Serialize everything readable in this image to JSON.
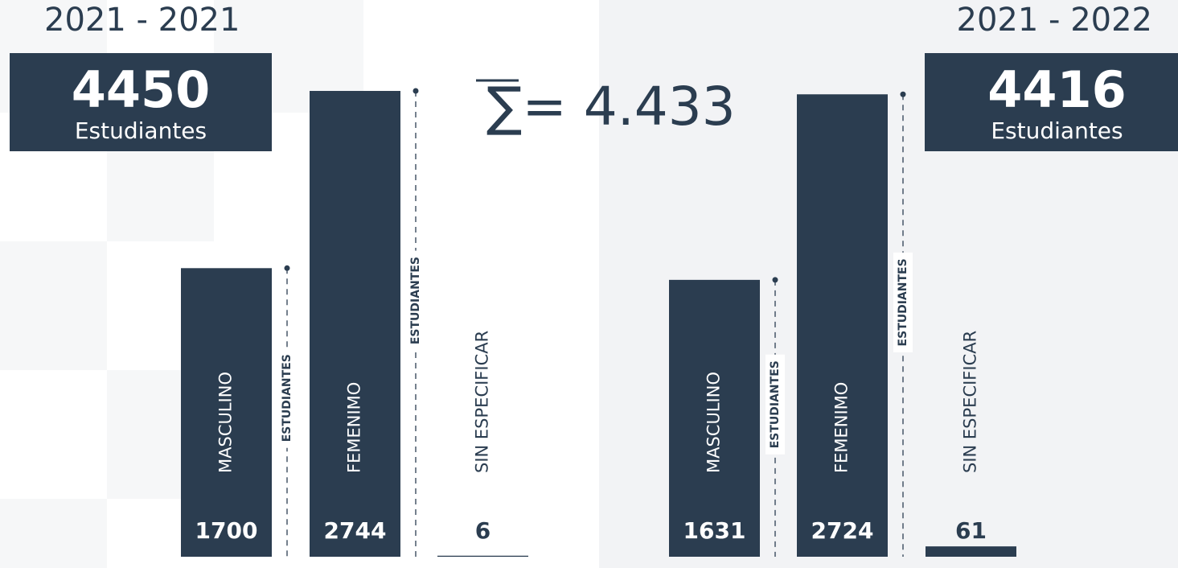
{
  "chart_data": [
    {
      "type": "bar",
      "title": "2021 - 2021",
      "total": "4450",
      "total_label": "Estudiantes",
      "unit_label": "ESTUDIANTES",
      "categories": [
        "MASCULINO",
        "FEMENIMO",
        "SIN ESPECIFICAR"
      ],
      "values": [
        1700,
        2744,
        6
      ],
      "color": "#2b3d50",
      "ylim": [
        0,
        3000
      ]
    },
    {
      "type": "bar",
      "title": "2021 - 2022",
      "total": "4416",
      "total_label": "Estudiantes",
      "unit_label": "ESTUDIANTES",
      "categories": [
        "MASCULINO",
        "FEMENIMO",
        "SIN ESPECIFICAR"
      ],
      "values": [
        1631,
        2724,
        61
      ],
      "color": "#2b3d50",
      "ylim": [
        0,
        3000
      ]
    }
  ],
  "annotation": "∑= 4.433"
}
